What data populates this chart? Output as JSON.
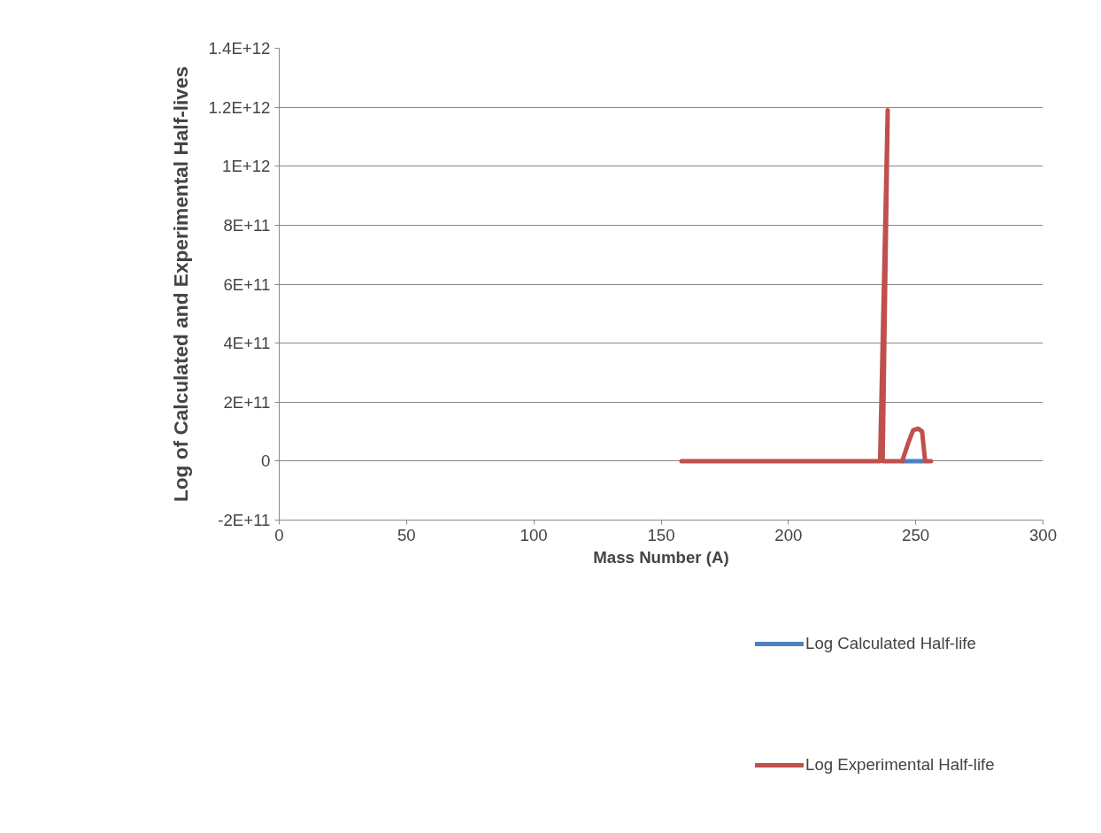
{
  "chart_data": {
    "type": "line",
    "xlabel": "Mass Number (A)",
    "ylabel": "Log of Calculated and Experimental Half-lives",
    "xlim": [
      0,
      300
    ],
    "xticks": [
      0,
      50,
      100,
      150,
      200,
      250,
      300
    ],
    "ylim": [
      -200000000000,
      1400000000000
    ],
    "yticks": [
      {
        "value": -200000000000,
        "label": "-2E+11"
      },
      {
        "value": 0,
        "label": "0"
      },
      {
        "value": 200000000000,
        "label": "2E+11"
      },
      {
        "value": 400000000000,
        "label": "4E+11"
      },
      {
        "value": 600000000000,
        "label": "6E+11"
      },
      {
        "value": 800000000000,
        "label": "8E+11"
      },
      {
        "value": 1000000000000,
        "label": "1E+12"
      },
      {
        "value": 1200000000000,
        "label": "1.2E+12"
      },
      {
        "value": 1400000000000,
        "label": "1.4E+12"
      }
    ],
    "grid": "y",
    "legend": "bottom right",
    "series": [
      {
        "name": "Log Calculated Half-life",
        "color": "#4f81bd",
        "x": [
          245,
          253
        ],
        "values": [
          0,
          0
        ]
      },
      {
        "name": "Log Experimental Half-life",
        "color": "#c0504d",
        "x": [
          158,
          180,
          210,
          236,
          239,
          237,
          244.7,
          247,
          249,
          251,
          252.5,
          253.7,
          256
        ],
        "values": [
          0,
          0,
          0,
          0,
          1190000000000,
          0,
          0,
          60000000000,
          105000000000,
          110000000000,
          100000000000,
          0,
          0
        ]
      }
    ]
  }
}
